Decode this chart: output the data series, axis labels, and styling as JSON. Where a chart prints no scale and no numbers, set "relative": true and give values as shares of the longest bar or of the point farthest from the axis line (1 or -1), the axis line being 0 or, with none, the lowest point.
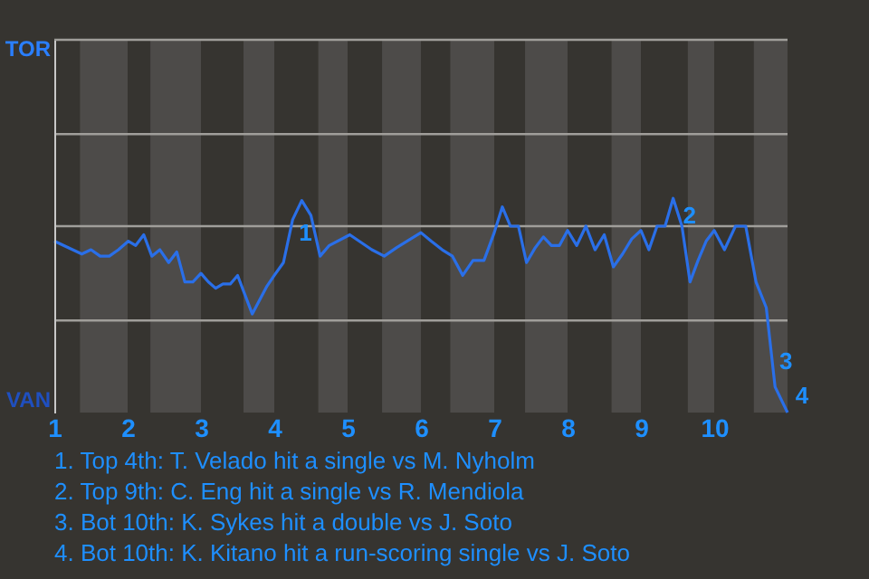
{
  "chart_data": {
    "type": "line",
    "x": [
      1.0,
      1.25,
      1.375,
      1.5,
      1.625,
      1.75,
      1.875,
      2.01,
      2.11,
      2.22,
      2.33,
      2.44,
      2.56,
      2.67,
      2.78,
      2.89,
      3.0,
      3.1,
      3.2,
      3.3,
      3.4,
      3.5,
      3.7,
      3.9,
      4.0,
      4.125,
      4.25,
      4.375,
      4.5,
      4.625,
      4.75,
      5.03,
      5.33,
      5.5,
      5.67,
      6.0,
      6.14,
      6.29,
      6.43,
      6.57,
      6.71,
      6.86,
      7.0,
      7.11,
      7.22,
      7.33,
      7.44,
      7.56,
      7.67,
      7.78,
      7.89,
      8.0,
      8.125,
      8.25,
      8.375,
      8.5,
      8.625,
      8.75,
      8.875,
      9.0,
      9.11,
      9.22,
      9.33,
      9.44,
      9.56,
      9.67,
      9.78,
      9.89,
      10.0,
      10.14,
      10.29,
      10.43,
      10.57,
      10.71,
      10.83,
      11.0
    ],
    "series": [
      {
        "color": "#2a6fe8",
        "values": [
          0.8,
          0.76,
          0.74,
          0.76,
          0.73,
          0.73,
          0.76,
          0.8,
          0.78,
          0.83,
          0.73,
          0.76,
          0.7,
          0.75,
          0.61,
          0.61,
          0.65,
          0.61,
          0.58,
          0.6,
          0.6,
          0.64,
          0.46,
          0.59,
          0.64,
          0.7,
          0.9,
          0.99,
          0.92,
          0.73,
          0.78,
          0.83,
          0.76,
          0.73,
          0.77,
          0.84,
          0.8,
          0.76,
          0.73,
          0.64,
          0.71,
          0.71,
          0.84,
          0.96,
          0.87,
          0.87,
          0.7,
          0.77,
          0.82,
          0.78,
          0.78,
          0.85,
          0.78,
          0.87,
          0.76,
          0.83,
          0.68,
          0.74,
          0.81,
          0.85,
          0.76,
          0.87,
          0.87,
          1,
          0.87,
          0.61,
          0.71,
          0.8,
          0.85,
          0.76,
          0.87,
          0.87,
          0.61,
          0.49,
          0.12,
          0
        ]
      }
    ],
    "relative": true,
    "xlim": [
      1,
      11
    ],
    "xticks": [
      1,
      2,
      3,
      4,
      5,
      6,
      7,
      8,
      9,
      10
    ],
    "ref_lines": [
      {
        "axis": "y",
        "value": 0.43,
        "label": null,
        "color": "#a09e9a"
      },
      {
        "axis": "y",
        "value": 0.87,
        "label": null,
        "color": "#a09e9a"
      },
      {
        "axis": "y",
        "value": 1.3,
        "label": null,
        "color": "#a09e9a"
      },
      {
        "axis": "y",
        "value": 1.74,
        "label": null,
        "color": "#a09e9a"
      }
    ],
    "marker": "none",
    "line_style": "solid",
    "bands": [
      {
        "axis": "x",
        "from": 1.35,
        "to": 2,
        "label": null,
        "color": "#4d4b49"
      },
      {
        "axis": "x",
        "from": 2.31,
        "to": 3,
        "label": null,
        "color": "#4d4b49"
      },
      {
        "axis": "x",
        "from": 3.58,
        "to": 4,
        "label": null,
        "color": "#4d4b49"
      },
      {
        "axis": "x",
        "from": 4.6,
        "to": 5,
        "label": null,
        "color": "#4d4b49"
      },
      {
        "axis": "x",
        "from": 5.47,
        "to": 6,
        "label": null,
        "color": "#4d4b49"
      },
      {
        "axis": "x",
        "from": 6.4,
        "to": 7,
        "label": null,
        "color": "#4d4b49"
      },
      {
        "axis": "x",
        "from": 7.42,
        "to": 8,
        "label": null,
        "color": "#4d4b49"
      },
      {
        "axis": "x",
        "from": 8.6,
        "to": 9,
        "label": null,
        "color": "#4d4b49"
      },
      {
        "axis": "x",
        "from": 9.64,
        "to": 10,
        "label": null,
        "color": "#4d4b49"
      },
      {
        "axis": "x",
        "from": 10.54,
        "to": 11,
        "label": null,
        "color": "#4d4b49"
      }
    ],
    "annotations": [
      "TOR",
      "VAN",
      {
        "text": "1",
        "x": 4.375,
        "y": 0.99
      },
      {
        "text": "2",
        "x": 9.44,
        "y": 1
      },
      {
        "text": "3",
        "x": 10.83,
        "y": 0.12
      },
      {
        "text": "4",
        "x": 11,
        "y": 0
      },
      "1. Top 4th: T. Velado hit a single vs M. Nyholm",
      "2. Top 9th: C. Eng hit a single vs R. Mendiola",
      "3. Bot 10th: K. Sykes hit a double vs J. Soto",
      "4. Bot 10th: K. Kitano hit a run-scoring single vs J. Soto"
    ]
  }
}
